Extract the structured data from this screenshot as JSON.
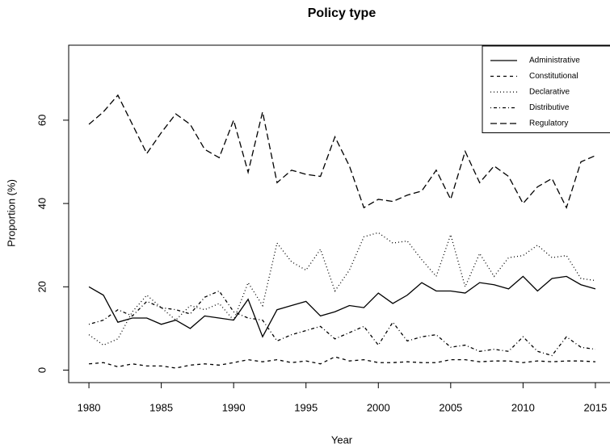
{
  "chart_data": {
    "type": "line",
    "title": "Policy type",
    "x_label": "Year",
    "y_label": "Proportion (%)",
    "x": [
      1980,
      1981,
      1982,
      1983,
      1984,
      1985,
      1986,
      1987,
      1988,
      1989,
      1990,
      1991,
      1992,
      1993,
      1994,
      1995,
      1996,
      1997,
      1998,
      1999,
      2000,
      2001,
      2002,
      2003,
      2004,
      2005,
      2006,
      2007,
      2008,
      2009,
      2010,
      2011,
      2012,
      2013,
      2014,
      2015
    ],
    "series": [
      {
        "name": "Administrative",
        "color": "#000000",
        "dash": "none",
        "values": [
          20,
          18,
          11.5,
          12.5,
          12.5,
          11,
          12,
          10,
          13,
          12.5,
          12,
          17,
          8,
          14.5,
          15.5,
          16.5,
          13,
          14,
          15.5,
          15,
          18.5,
          16,
          18,
          21,
          19,
          19,
          18.5,
          21,
          20.5,
          19.5,
          22.5,
          19,
          22,
          22.5,
          20.5,
          19.5
        ]
      },
      {
        "name": "Constitutional",
        "color": "#000000",
        "dash": "4,4",
        "values": [
          1.5,
          1.8,
          0.8,
          1.5,
          1,
          1,
          0.5,
          1.2,
          1.5,
          1.2,
          1.8,
          2.5,
          2,
          2.5,
          1.8,
          2.2,
          1.5,
          3.2,
          2.2,
          2.5,
          1.8,
          1.8,
          2,
          1.8,
          1.8,
          2.5,
          2.5,
          2,
          2.2,
          2.2,
          1.8,
          2.2,
          2,
          2.2,
          2.2,
          2
        ]
      },
      {
        "name": "Declarative",
        "color": "#000000",
        "dash": "1,3",
        "values": [
          8.5,
          6,
          7.5,
          14,
          18,
          15,
          12,
          15.5,
          14.5,
          16,
          12,
          21,
          15.5,
          30.5,
          26,
          24,
          29,
          19,
          24,
          32,
          33,
          30.5,
          31,
          26.5,
          22.5,
          32.5,
          20,
          28,
          22.5,
          27,
          27.5,
          30,
          27,
          27.5,
          22,
          21.5
        ]
      },
      {
        "name": "Distributive",
        "color": "#000000",
        "dash": "1,3,4,3",
        "values": [
          11,
          12,
          14.5,
          13,
          16.5,
          15,
          14.5,
          13.5,
          17.5,
          19,
          14,
          12.5,
          12,
          7,
          8.5,
          9.5,
          10.5,
          7.5,
          9,
          10.5,
          6,
          11.5,
          7,
          8,
          8.5,
          5.5,
          6,
          4.5,
          5,
          4.5,
          8,
          4.5,
          3.5,
          8,
          5.5,
          5
        ]
      },
      {
        "name": "Regulatory",
        "color": "#000000",
        "dash": "8,4",
        "values": [
          59,
          62,
          66,
          59,
          52,
          57,
          61.5,
          59,
          53,
          51,
          60,
          47.5,
          62,
          45,
          48,
          47,
          46.5,
          56,
          49,
          39,
          41,
          40.5,
          42,
          43,
          48,
          41,
          52.5,
          45,
          49,
          46.5,
          40,
          44,
          46,
          39,
          50,
          51.5
        ]
      }
    ],
    "xlim": [
      1978.6,
      2016.4
    ],
    "xticks": [
      1980,
      1985,
      1990,
      1995,
      2000,
      2005,
      2010,
      2015
    ],
    "ylim": [
      -3,
      78
    ],
    "yticks": [
      0,
      20,
      40,
      60
    ],
    "legend": "top-right"
  }
}
